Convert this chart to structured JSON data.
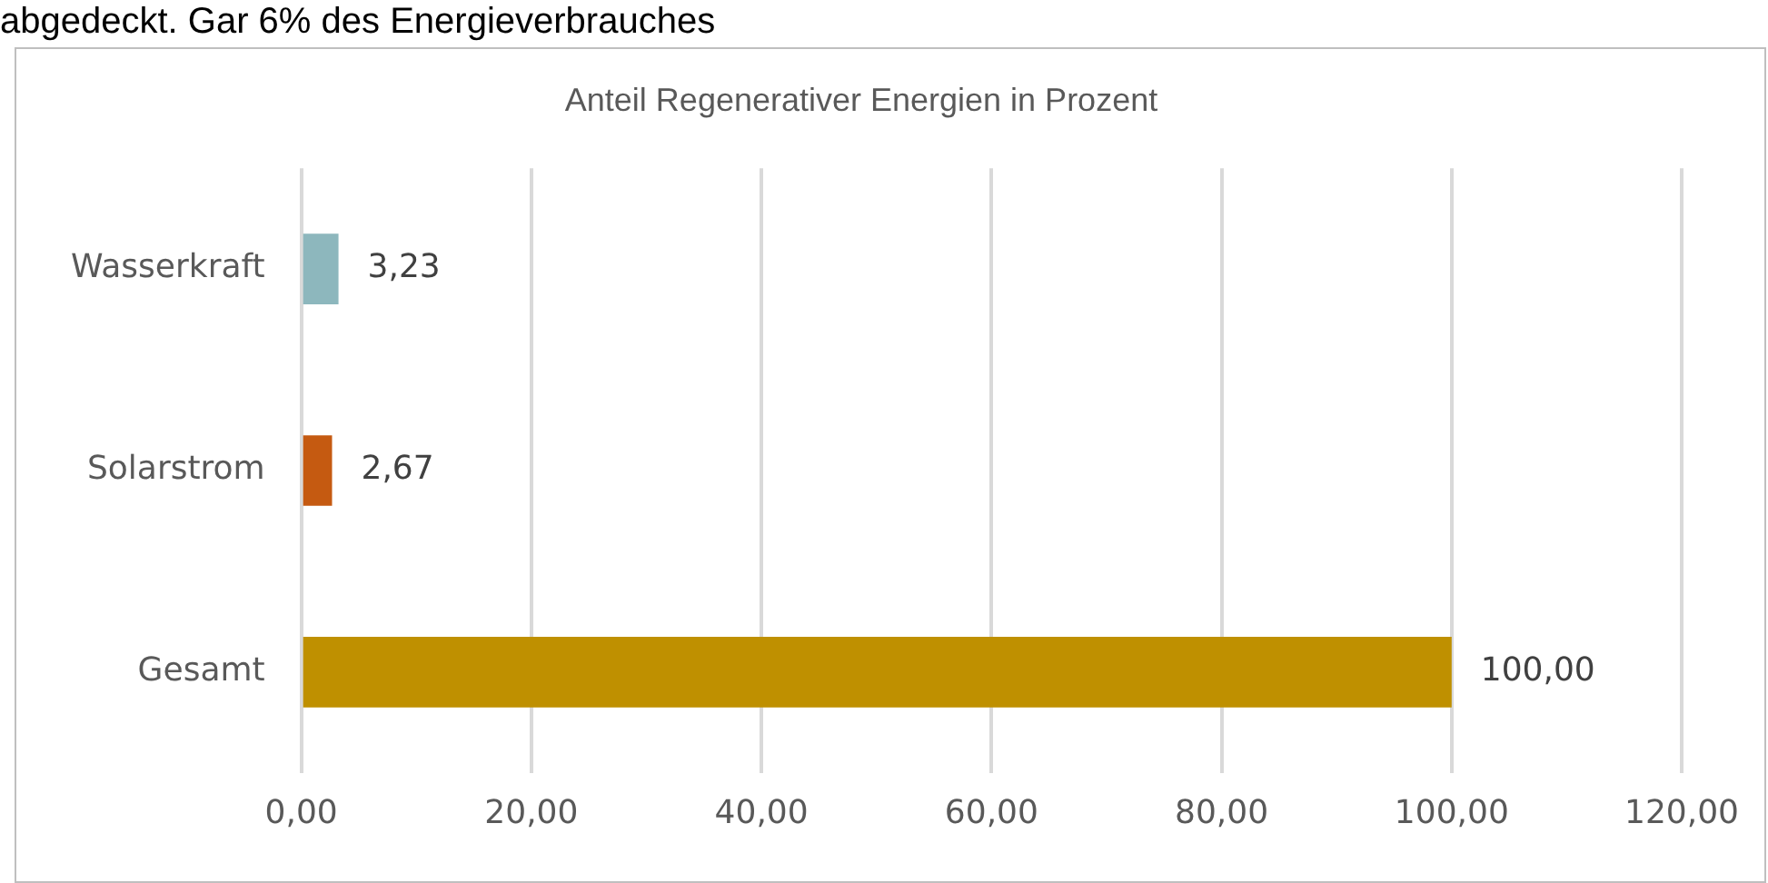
{
  "chart_data": {
    "type": "bar",
    "orientation": "horizontal",
    "title": "Anteil Regenerativer Energien in Prozent",
    "annotations": [
      "abgedeckt. Gar 6% des Energieverbrauches"
    ],
    "categories": [
      "Wasserkraft",
      "Solarstrom",
      "Gesamt"
    ],
    "values": [
      3.23,
      2.67,
      100
    ],
    "colors": [
      "#8db7bd",
      "#c55a11",
      "#bf9000"
    ],
    "value_labels": [
      "3,23",
      "2,67",
      "100,00"
    ],
    "xlim": [
      0,
      120
    ],
    "xticks": [
      {
        "value": 0,
        "label": "0,00"
      },
      {
        "value": 20,
        "label": "20,00"
      },
      {
        "value": 40,
        "label": "40,00"
      },
      {
        "value": 60,
        "label": "60,00"
      },
      {
        "value": 80,
        "label": "80,00"
      },
      {
        "value": 100,
        "label": "100,00"
      },
      {
        "value": 120,
        "label": "120,00"
      }
    ],
    "grid": "x",
    "legend": false
  }
}
